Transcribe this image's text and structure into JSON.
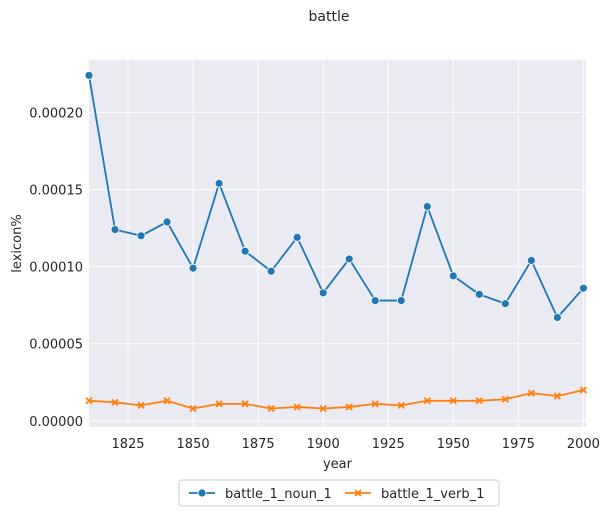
{
  "chart_data": {
    "type": "line",
    "title": "battle",
    "xlabel": "year",
    "ylabel": "lexicon%",
    "xlim": [
      1810,
      2001
    ],
    "ylim": [
      -4e-06,
      0.000234
    ],
    "xticks": [
      1825,
      1850,
      1875,
      1900,
      1925,
      1950,
      1975,
      2000
    ],
    "yticks": [
      0.0,
      5e-05,
      0.0001,
      0.00015,
      0.0002
    ],
    "ytick_labels": [
      "0.00000",
      "0.00005",
      "0.00010",
      "0.00015",
      "0.00020"
    ],
    "grid": true,
    "legend_position": "bottom-center",
    "x": [
      1810,
      1820,
      1830,
      1840,
      1850,
      1860,
      1870,
      1880,
      1890,
      1900,
      1910,
      1920,
      1930,
      1940,
      1950,
      1960,
      1970,
      1980,
      1990,
      2000
    ],
    "series": [
      {
        "name": "battle_1_noun_1",
        "color": "#1f77b4",
        "marker": "circle",
        "values": [
          0.000224,
          0.000124,
          0.00012,
          0.000129,
          9.9e-05,
          0.000154,
          0.00011,
          9.7e-05,
          0.000119,
          8.3e-05,
          0.000105,
          7.8e-05,
          7.8e-05,
          0.000139,
          9.4e-05,
          8.2e-05,
          7.6e-05,
          0.000104,
          6.7e-05,
          8.6e-05
        ]
      },
      {
        "name": "battle_1_verb_1",
        "color": "#ff7f0e",
        "marker": "x",
        "values": [
          1.3e-05,
          1.2e-05,
          1e-05,
          1.3e-05,
          8e-06,
          1.1e-05,
          1.1e-05,
          8e-06,
          9e-06,
          8e-06,
          9e-06,
          1.1e-05,
          1e-05,
          1.3e-05,
          1.3e-05,
          1.3e-05,
          1.4e-05,
          1.8e-05,
          1.6e-05,
          2e-05
        ]
      }
    ],
    "colors": {
      "plot_background": "#eaeaf2",
      "grid": "#ffffff"
    }
  }
}
